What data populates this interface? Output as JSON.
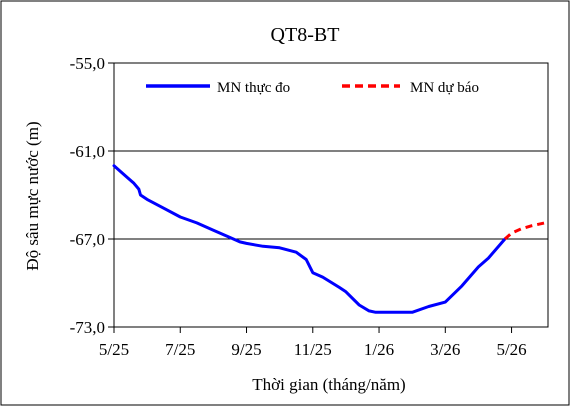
{
  "chart_data": {
    "type": "line",
    "title": "QT8-BT",
    "xlabel": "Thời gian  (tháng/năm)",
    "ylabel": "Độ sâu mực nước (m)",
    "x_tick_labels": [
      "5/25",
      "7/25",
      "9/25",
      "11/25",
      "1/26",
      "3/26",
      "5/26"
    ],
    "x_tick_positions_month": [
      0,
      2,
      4,
      6,
      8,
      10,
      12
    ],
    "xlim_month": [
      0,
      13.1
    ],
    "y_tick_labels": [
      "-55,0",
      "-61,0",
      "-67,0",
      "-73,0"
    ],
    "y_tick_values": [
      -55,
      -61,
      -67,
      -73
    ],
    "ylim": [
      -73,
      -55
    ],
    "grid": "horizontal",
    "legend_position": "top",
    "series": [
      {
        "name": "MN thực đo",
        "color": "#0000ff",
        "style": "solid",
        "x_month": [
          0,
          0.3,
          0.6,
          0.75,
          0.8,
          1.0,
          1.5,
          2.0,
          2.5,
          3.0,
          3.5,
          3.8,
          4.0,
          4.5,
          5.0,
          5.5,
          5.8,
          6.0,
          6.3,
          6.8,
          7.0,
          7.4,
          7.7,
          7.9,
          8.0,
          8.3,
          8.6,
          8.9,
          9.0,
          9.5,
          10.0,
          10.5,
          11.0,
          11.3,
          11.8
        ],
        "y": [
          -62.0,
          -62.6,
          -63.2,
          -63.6,
          -64.0,
          -64.3,
          -64.9,
          -65.5,
          -65.9,
          -66.4,
          -66.9,
          -67.2,
          -67.3,
          -67.5,
          -67.6,
          -67.9,
          -68.4,
          -69.3,
          -69.6,
          -70.3,
          -70.6,
          -71.5,
          -71.9,
          -72.0,
          -72.0,
          -72.0,
          -72.0,
          -72.0,
          -72.0,
          -71.6,
          -71.3,
          -70.2,
          -68.9,
          -68.3,
          -67.0
        ]
      },
      {
        "name": "MN dự báo",
        "color": "#ff0000",
        "style": "dashed",
        "x_month": [
          11.8,
          12.0,
          12.3,
          12.6,
          13.0,
          13.1
        ],
        "y": [
          -67.0,
          -66.6,
          -66.3,
          -66.1,
          -65.9,
          -65.9
        ]
      }
    ]
  }
}
